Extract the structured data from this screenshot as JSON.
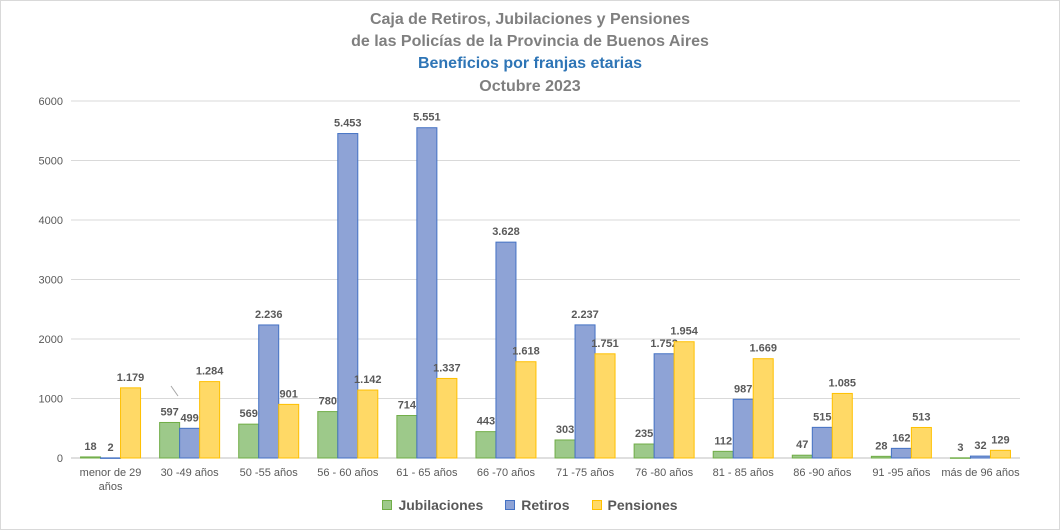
{
  "titles": {
    "line1": "Caja de Retiros, Jubilaciones y Pensiones",
    "line2": "de las Policías de la Provincia de Buenos Aires",
    "line3": "Beneficios por franjas etarias",
    "line4": "Octubre 2023"
  },
  "colors": {
    "title": "#7f7f7f",
    "subtitle": "#2e75b6",
    "jubilaciones": "#9dc98a",
    "retiros": "#8ea3d6",
    "pensiones": "#ffd966"
  },
  "chart_data": {
    "type": "bar",
    "title": "Caja de Retiros, Jubilaciones y Pensiones de las Policías de la Provincia de Buenos Aires",
    "subtitle": "Beneficios por franjas etarias — Octubre 2023",
    "categories": [
      "menor de 29 años",
      "30 -49 años",
      "50 -55 años",
      "56 - 60 años",
      "61 - 65 años",
      "66 -70 años",
      "71 -75 años",
      "76 -80 años",
      "81 - 85 años",
      "86 -90 años",
      "91 -95 años",
      "más de 96 años"
    ],
    "series": [
      {
        "name": "Jubilaciones",
        "values": [
          18,
          597,
          569,
          780,
          714,
          443,
          303,
          235,
          112,
          47,
          28,
          3
        ],
        "labels": [
          "18",
          "597",
          "569",
          "780",
          "714",
          "443",
          "303",
          "235",
          "112",
          "47",
          "28",
          "3"
        ]
      },
      {
        "name": "Retiros",
        "values": [
          2,
          499,
          2236,
          5453,
          5551,
          3628,
          2237,
          1752,
          987,
          515,
          162,
          32
        ],
        "labels": [
          "2",
          "499",
          "2.236",
          "5.453",
          "5.551",
          "3.628",
          "2.237",
          "1.752",
          "987",
          "515",
          "162",
          "32"
        ]
      },
      {
        "name": "Pensiones",
        "values": [
          1179,
          1284,
          901,
          1142,
          1337,
          1618,
          1751,
          1954,
          1669,
          1085,
          513,
          129
        ],
        "labels": [
          "1.179",
          "1.284",
          "901",
          "1.142",
          "1.337",
          "1.618",
          "1.751",
          "1.954",
          "1.669",
          "1.085",
          "513",
          "129"
        ]
      }
    ],
    "ylim": [
      0,
      6000
    ],
    "yticks": [
      0,
      1000,
      2000,
      3000,
      4000,
      5000,
      6000
    ],
    "grid": true,
    "legend": "bottom"
  }
}
